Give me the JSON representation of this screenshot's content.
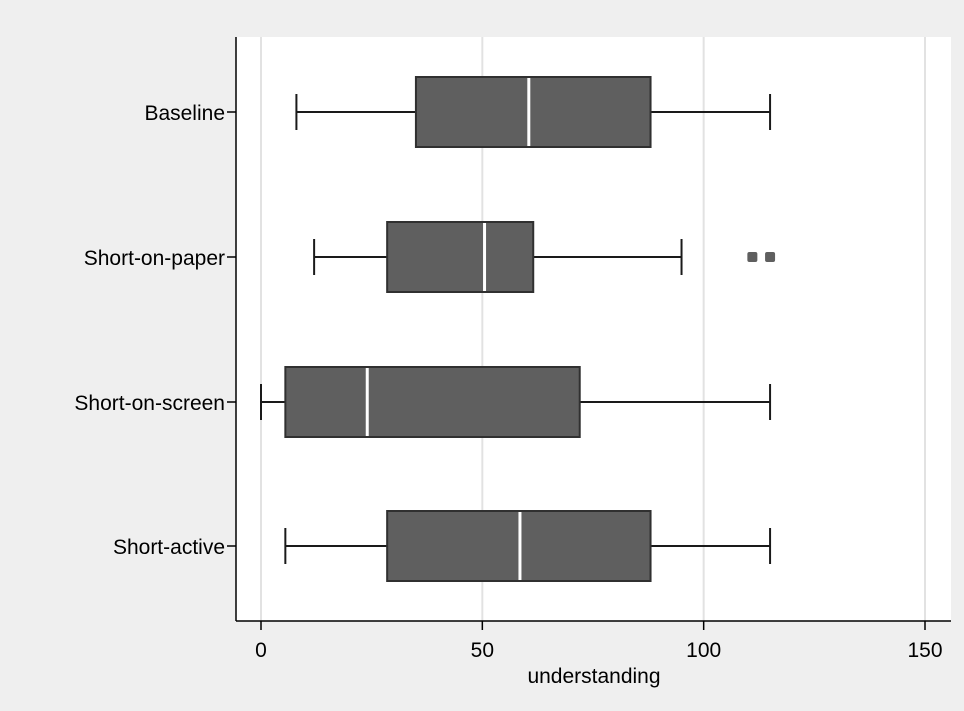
{
  "chart_data": {
    "type": "boxplot",
    "orientation": "horizontal",
    "xlabel": "understanding",
    "xlim": [
      -5,
      155
    ],
    "xticks": [
      0,
      50,
      100,
      150
    ],
    "grid": "vertical",
    "colors": {
      "background": "#efefef",
      "plot_area": "#ffffff",
      "box_fill": "#5f5f5f",
      "box_stroke": "#303030",
      "median": "#ffffff",
      "whisker": "#1a1a1a",
      "gridline": "#e2e2e2",
      "outlier": "#5f5f5f"
    },
    "categories": [
      "Baseline",
      "Short-on-paper",
      "Short-on-screen",
      "Short-active"
    ],
    "boxes": [
      {
        "label": "Baseline",
        "whisker_low": 8,
        "q1": 35,
        "median": 60.5,
        "q3": 88,
        "whisker_high": 115,
        "outliers": []
      },
      {
        "label": "Short-on-paper",
        "whisker_low": 12,
        "q1": 28.5,
        "median": 50.5,
        "q3": 61.5,
        "whisker_high": 95,
        "outliers": [
          111,
          115
        ]
      },
      {
        "label": "Short-on-screen",
        "whisker_low": 0,
        "q1": 5.5,
        "median": 24,
        "q3": 72,
        "whisker_high": 115,
        "outliers": []
      },
      {
        "label": "Short-active",
        "whisker_low": 5.5,
        "q1": 28.5,
        "median": 58.5,
        "q3": 88,
        "whisker_high": 115,
        "outliers": []
      }
    ]
  }
}
